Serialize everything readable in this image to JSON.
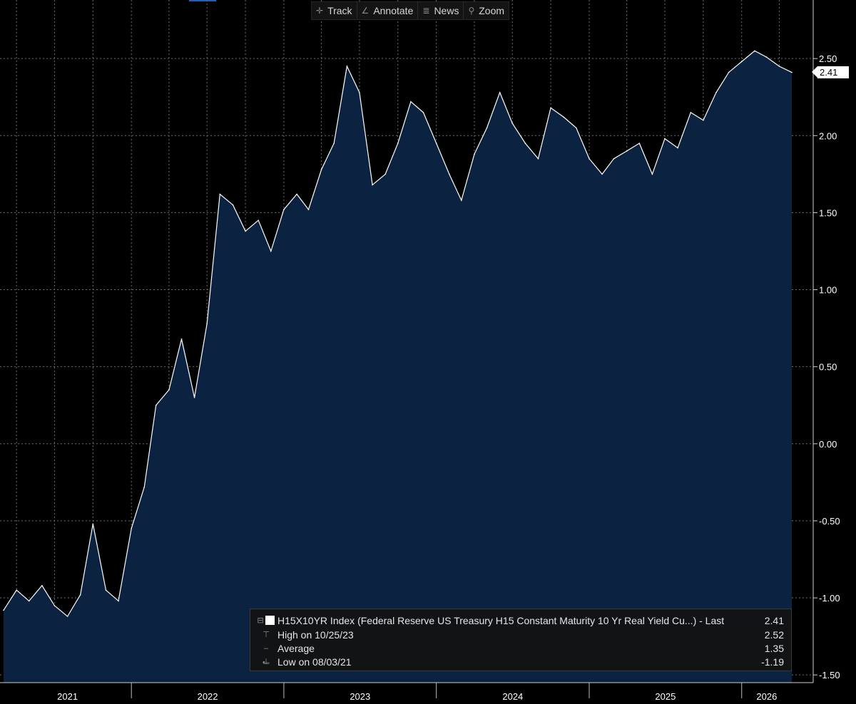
{
  "toolbar": {
    "items": [
      {
        "label": "Track",
        "icon": "crosshair-icon"
      },
      {
        "label": "Annotate",
        "icon": "pencil-icon"
      },
      {
        "label": "News",
        "icon": "news-icon"
      },
      {
        "label": "Zoom",
        "icon": "magnifier-icon"
      }
    ]
  },
  "last_value_tag": "2.41",
  "legend": {
    "series_label": "H15X10YR Index (Federal Reserve US Treasury H15 Constant Maturity 10 Yr Real Yield Cu...) - Last",
    "series_value": "2.41",
    "high_label": "High on 10/25/23",
    "high_value": "2.52",
    "avg_label": "Average",
    "avg_value": "1.35",
    "low_label": "Low on 08/03/21",
    "low_value": "-1.19"
  },
  "colors": {
    "background": "#000000",
    "area_fill": "#0b2240",
    "line": "#ffffff",
    "grid": "#6e6e6e",
    "axis_text": "#ffffff"
  },
  "chart_data": {
    "type": "area",
    "title": "",
    "xlabel": "",
    "ylabel": "",
    "y_axis_side": "right",
    "ylim": [
      -1.55,
      2.88
    ],
    "yticks": [
      -1.5,
      -1.0,
      -0.5,
      0.0,
      0.5,
      1.0,
      1.5,
      2.0,
      2.5
    ],
    "ytick_labels": [
      "-1.50",
      "-1.00",
      "-0.50",
      "0.00",
      "0.50",
      "1.00",
      "1.50",
      "2.00",
      "2.50"
    ],
    "x_labels": [
      "2021",
      "2022",
      "2023",
      "2024",
      "2025",
      "2026"
    ],
    "grid": true,
    "series": [
      {
        "name": "H15X10YR Index",
        "x": [
          "2021-03-01",
          "2021-04-01",
          "2021-05-01",
          "2021-06-01",
          "2021-07-01",
          "2021-08-01",
          "2021-09-01",
          "2021-10-01",
          "2021-11-01",
          "2021-12-01",
          "2022-01-01",
          "2022-02-01",
          "2022-03-01",
          "2022-04-01",
          "2022-05-01",
          "2022-06-01",
          "2022-07-01",
          "2022-08-01",
          "2022-09-01",
          "2022-10-01",
          "2022-11-01",
          "2022-12-01",
          "2023-01-01",
          "2023-02-01",
          "2023-03-01",
          "2023-04-01",
          "2023-05-01",
          "2023-06-01",
          "2023-07-01",
          "2023-08-01",
          "2023-09-01",
          "2023-10-01",
          "2023-11-01",
          "2023-12-01",
          "2024-01-01",
          "2024-02-01",
          "2024-03-01",
          "2024-04-01",
          "2024-05-01",
          "2024-06-01",
          "2024-07-01",
          "2024-08-01",
          "2024-09-01",
          "2024-10-01",
          "2024-11-01",
          "2024-12-01",
          "2025-01-01",
          "2025-02-01",
          "2025-03-01",
          "2025-04-01",
          "2025-05-01",
          "2025-06-01",
          "2025-07-01",
          "2025-08-01",
          "2025-09-01",
          "2025-10-01",
          "2025-11-01",
          "2025-12-01",
          "2026-01-01",
          "2026-02-01",
          "2026-03-01",
          "2026-04-01",
          "2026-05-01"
        ],
        "values": [
          -1.08,
          -0.95,
          -1.02,
          -0.92,
          -1.05,
          -1.12,
          -0.98,
          -0.52,
          -0.95,
          -1.02,
          -0.55,
          -0.28,
          0.25,
          0.35,
          0.68,
          0.3,
          0.78,
          1.62,
          1.55,
          1.38,
          1.45,
          1.25,
          1.52,
          1.62,
          1.52,
          1.78,
          1.95,
          2.45,
          2.28,
          1.68,
          1.75,
          1.95,
          2.22,
          2.15,
          1.95,
          1.75,
          1.58,
          1.88,
          2.05,
          2.28,
          2.08,
          1.95,
          1.85,
          2.18,
          2.12,
          2.05,
          1.85,
          1.75,
          1.85,
          1.9,
          1.95,
          1.75,
          1.98,
          1.92,
          2.15,
          2.1,
          2.28,
          2.41,
          2.48,
          2.55,
          2.51,
          2.45,
          2.41
        ]
      }
    ],
    "annotations": {
      "last": 2.41,
      "high": {
        "date": "10/25/23",
        "value": 2.52
      },
      "average": 1.35,
      "low": {
        "date": "08/03/21",
        "value": -1.19
      }
    }
  }
}
